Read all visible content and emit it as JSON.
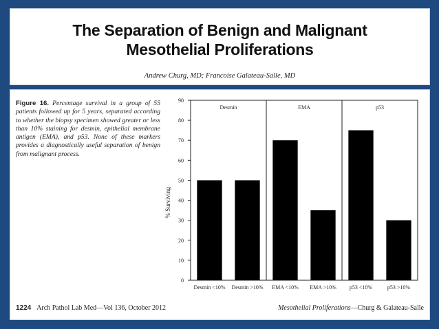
{
  "header": {
    "title_line_1": "The Separation of Benign and Malignant",
    "title_line_2": "Mesothelial Proliferations",
    "authors": "Andrew Churg, MD; Francoise Galateau-Salle, MD"
  },
  "caption": {
    "label": "Figure 16.",
    "text": "Percentage survival in a group of 55 patients followed up for 5 years, separated according to whether the biopsy specimen showed greater or less than 10% staining for desmin, epithelial membrane antigen (EMA), and p53. None of these markers provides a diagnostically useful separation of benign from malignant process."
  },
  "footer": {
    "page": "1224",
    "journal": "Arch Pathol Lab Med—Vol 136, October 2012",
    "running_title": "Mesothelial Proliferations",
    "running_authors": "—Churg & Galateau-Salle"
  },
  "chart_data": {
    "type": "bar",
    "ylabel": "% Surviving",
    "ylim": [
      0,
      90
    ],
    "yticks": [
      0,
      10,
      20,
      30,
      40,
      50,
      60,
      70,
      80,
      90
    ],
    "categories": [
      "Desmin <10%",
      "Desmin >10%",
      "EMA <10%",
      "EMA >10%",
      "p53 <10%",
      "p53 >10%"
    ],
    "values": [
      50,
      50,
      70,
      35,
      75,
      30
    ],
    "groups": [
      {
        "label": "Desmin",
        "categories": [
          0,
          1
        ]
      },
      {
        "label": "EMA",
        "categories": [
          2,
          3
        ]
      },
      {
        "label": "p53",
        "categories": [
          4,
          5
        ]
      }
    ],
    "bar_color": "#000000",
    "grid": false
  }
}
